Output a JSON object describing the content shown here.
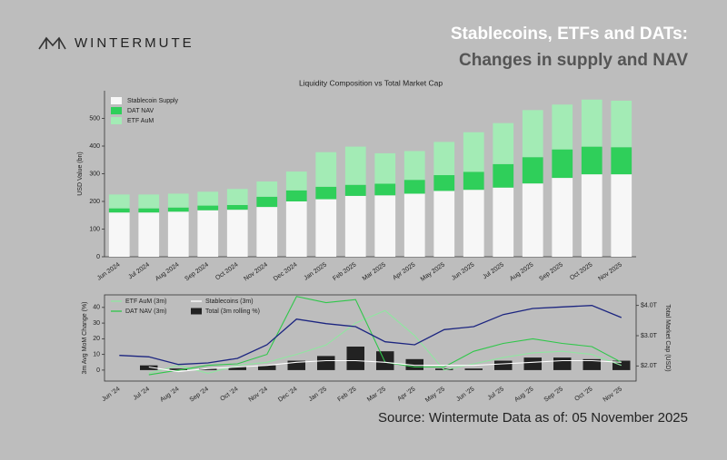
{
  "header": {
    "brand": "WINTERMUTE",
    "title_line1": "Stablecoins, ETFs and DATs:",
    "title_line2": "Changes in supply and NAV"
  },
  "chart_data": [
    {
      "type": "bar",
      "stacked": true,
      "title": "Liquidity Composition vs Total Market Cap",
      "y_label": "USD Value (bn)",
      "categories": [
        "Jun 2024",
        "Jul 2024",
        "Aug 2024",
        "Sep 2024",
        "Oct 2024",
        "Nov 2024",
        "Dec 2024",
        "Jan 2025",
        "Feb 2025",
        "Mar 2025",
        "Apr 2025",
        "May 2025",
        "Jun 2025",
        "Jul 2025",
        "Aug 2025",
        "Sep 2025",
        "Oct 2025",
        "Nov 2025"
      ],
      "series": [
        {
          "name": "Stablecoin Supply",
          "color": "#f7f7f7",
          "values": [
            160,
            160,
            163,
            168,
            170,
            180,
            200,
            208,
            220,
            222,
            228,
            238,
            242,
            250,
            265,
            285,
            298,
            298
          ]
        },
        {
          "name": "DAT NAV",
          "color": "#2fcf5a",
          "values": [
            15,
            15,
            15,
            17,
            17,
            37,
            40,
            45,
            40,
            42,
            50,
            57,
            65,
            85,
            95,
            103,
            100,
            98
          ]
        },
        {
          "name": "ETF AuM",
          "color": "#a3ebb5",
          "values": [
            50,
            50,
            50,
            50,
            58,
            55,
            68,
            125,
            138,
            110,
            104,
            120,
            143,
            148,
            170,
            162,
            170,
            168
          ]
        }
      ],
      "ylim": [
        0,
        600
      ],
      "yticks": [
        0,
        100,
        200,
        300,
        400,
        500
      ],
      "grid": false,
      "legend": "upper-left"
    },
    {
      "type": "line",
      "y_label": "3m Avg MoM Change (%)",
      "y2_label": "Total Market Cap (USD)",
      "categories": [
        "Jun '24",
        "Jul '24",
        "Aug '24",
        "Sep '24",
        "Oct '24",
        "Nov '24",
        "Dec '24",
        "Jan '25",
        "Feb '25",
        "Mar '25",
        "Apr '25",
        "May '25",
        "Jun '25",
        "Jul '25",
        "Aug '25",
        "Sep '25",
        "Oct '25",
        "Nov '25"
      ],
      "series": [
        {
          "name": "ETF AuM (3m)",
          "color": "#8fe6a0",
          "values": [
            null,
            -2,
            3,
            -2,
            3,
            5,
            10,
            16,
            30,
            38,
            22,
            0,
            4,
            8,
            11,
            12,
            10,
            3
          ]
        },
        {
          "name": "DAT NAV (3m)",
          "color": "#2fc74a",
          "values": [
            null,
            -3,
            0,
            3,
            4,
            10,
            47,
            43,
            45,
            5,
            2,
            2,
            12,
            17,
            20,
            17,
            15,
            5
          ]
        },
        {
          "name": "Stablecoins (3m)",
          "color": "#ffffff",
          "values": [
            null,
            2,
            -1,
            1,
            2,
            3,
            5,
            6,
            6,
            5,
            3,
            3,
            3,
            4,
            5,
            6,
            6,
            5
          ]
        },
        {
          "name": "Total (3m rolling %)",
          "color": "#222222",
          "type": "bar",
          "values": [
            null,
            3,
            1,
            1,
            2,
            3,
            6,
            9,
            15,
            12,
            7,
            1,
            1,
            6,
            8,
            8,
            7,
            6
          ]
        },
        {
          "color": "#1c2580",
          "axis": "y2",
          "values": [
            2.35,
            2.3,
            2.05,
            2.1,
            2.25,
            2.7,
            3.55,
            3.4,
            3.3,
            2.8,
            2.7,
            3.2,
            3.3,
            3.7,
            3.9,
            3.95,
            4.0,
            3.6
          ]
        }
      ],
      "ylim": [
        -7,
        48
      ],
      "yticks": [
        0,
        10,
        20,
        30,
        40
      ],
      "y2lim": [
        1.5,
        4.35
      ],
      "y2ticks": [
        {
          "value": 2.0,
          "label": "$2.0T"
        },
        {
          "value": 3.0,
          "label": "$3.0T"
        },
        {
          "value": 4.0,
          "label": "$4.0T"
        }
      ],
      "grid": false,
      "legend": "upper-left"
    }
  ],
  "footer": {
    "source": "Source: Wintermute  Data as of: 05 November 2025"
  }
}
